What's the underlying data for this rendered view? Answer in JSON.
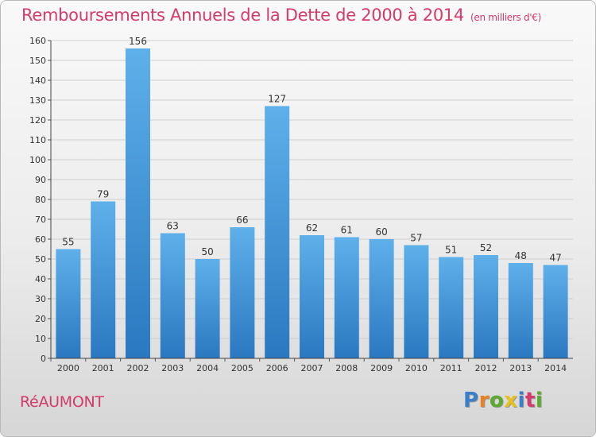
{
  "title": "Remboursements Annuels de la Dette de 2000 à 2014",
  "unit_label": "(en milliers d'€)",
  "commune": "RéAUMONT",
  "logo": {
    "text": "Proxiti",
    "letters": [
      "P",
      "r",
      "o",
      "x",
      "i",
      "t",
      "i"
    ],
    "colors": [
      "#3a7fc8",
      "#e8821e",
      "#5aab2e",
      "#e8c01e",
      "#3a7fc8",
      "#d43a6a",
      "#5aab2e"
    ]
  },
  "colors": {
    "bar_top": "#5eb0ea",
    "bar_bottom": "#2a78c0",
    "title": "#d43a6a",
    "grid": "#cfcfcf"
  },
  "chart_data": {
    "type": "bar",
    "title": "Remboursements Annuels de la Dette de 2000 à 2014",
    "subtitle": "(en milliers d'€)",
    "categories": [
      "2000",
      "2001",
      "2002",
      "2003",
      "2004",
      "2005",
      "2006",
      "2007",
      "2008",
      "2009",
      "2010",
      "2011",
      "2012",
      "2013",
      "2014"
    ],
    "values": [
      55,
      79,
      156,
      63,
      50,
      66,
      127,
      62,
      61,
      60,
      57,
      51,
      52,
      48,
      47
    ],
    "ylim": [
      0,
      160
    ],
    "yticks": [
      0,
      10,
      20,
      30,
      40,
      50,
      60,
      70,
      80,
      90,
      100,
      110,
      120,
      130,
      140,
      150,
      160
    ],
    "grid": true,
    "legend": "none"
  }
}
